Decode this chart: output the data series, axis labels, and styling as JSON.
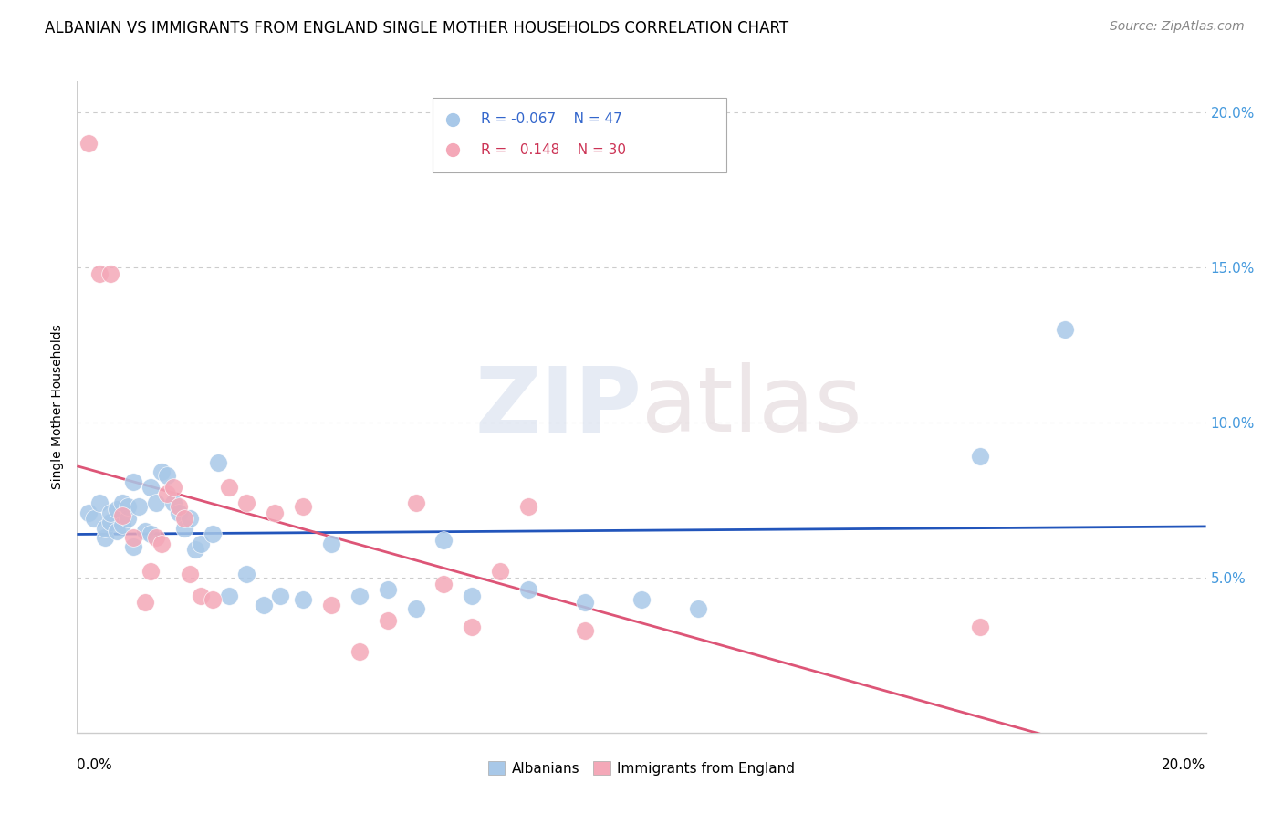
{
  "title": "ALBANIAN VS IMMIGRANTS FROM ENGLAND SINGLE MOTHER HOUSEHOLDS CORRELATION CHART",
  "source": "Source: ZipAtlas.com",
  "ylabel": "Single Mother Households",
  "legend_albanians": "Albanians",
  "legend_england": "Immigrants from England",
  "r_albanians": "-0.067",
  "n_albanians": "47",
  "r_england": "0.148",
  "n_england": "30",
  "albanians_color": "#a8c8e8",
  "england_color": "#f4a8b8",
  "line_albanian_color": "#2255bb",
  "line_england_color": "#dd5577",
  "albanians_x": [
    0.002,
    0.003,
    0.004,
    0.005,
    0.005,
    0.006,
    0.006,
    0.007,
    0.007,
    0.008,
    0.008,
    0.009,
    0.009,
    0.01,
    0.01,
    0.011,
    0.012,
    0.013,
    0.013,
    0.014,
    0.015,
    0.016,
    0.017,
    0.018,
    0.019,
    0.02,
    0.021,
    0.022,
    0.024,
    0.025,
    0.027,
    0.03,
    0.033,
    0.036,
    0.04,
    0.045,
    0.05,
    0.055,
    0.06,
    0.065,
    0.07,
    0.08,
    0.09,
    0.1,
    0.11,
    0.16,
    0.175
  ],
  "albanians_y": [
    0.071,
    0.069,
    0.074,
    0.063,
    0.066,
    0.068,
    0.071,
    0.065,
    0.072,
    0.067,
    0.074,
    0.069,
    0.073,
    0.081,
    0.06,
    0.073,
    0.065,
    0.064,
    0.079,
    0.074,
    0.084,
    0.083,
    0.074,
    0.071,
    0.066,
    0.069,
    0.059,
    0.061,
    0.064,
    0.087,
    0.044,
    0.051,
    0.041,
    0.044,
    0.043,
    0.061,
    0.044,
    0.046,
    0.04,
    0.062,
    0.044,
    0.046,
    0.042,
    0.043,
    0.04,
    0.089,
    0.13
  ],
  "england_x": [
    0.002,
    0.004,
    0.006,
    0.008,
    0.01,
    0.012,
    0.013,
    0.014,
    0.015,
    0.016,
    0.017,
    0.018,
    0.019,
    0.02,
    0.022,
    0.024,
    0.027,
    0.03,
    0.035,
    0.04,
    0.045,
    0.05,
    0.055,
    0.06,
    0.065,
    0.07,
    0.075,
    0.08,
    0.09,
    0.16
  ],
  "england_y": [
    0.19,
    0.148,
    0.148,
    0.07,
    0.063,
    0.042,
    0.052,
    0.063,
    0.061,
    0.077,
    0.079,
    0.073,
    0.069,
    0.051,
    0.044,
    0.043,
    0.079,
    0.074,
    0.071,
    0.073,
    0.041,
    0.026,
    0.036,
    0.074,
    0.048,
    0.034,
    0.052,
    0.073,
    0.033,
    0.034
  ],
  "xlim": [
    0.0,
    0.2
  ],
  "ylim": [
    0.0,
    0.21
  ],
  "yticks": [
    0.05,
    0.1,
    0.15,
    0.2
  ],
  "ytick_labels": [
    "5.0%",
    "10.0%",
    "15.0%",
    "20.0%"
  ],
  "xtick_left": "0.0%",
  "xtick_right": "20.0%",
  "grid_color": "#cccccc",
  "background_color": "#ffffff",
  "title_fontsize": 12,
  "source_fontsize": 10
}
